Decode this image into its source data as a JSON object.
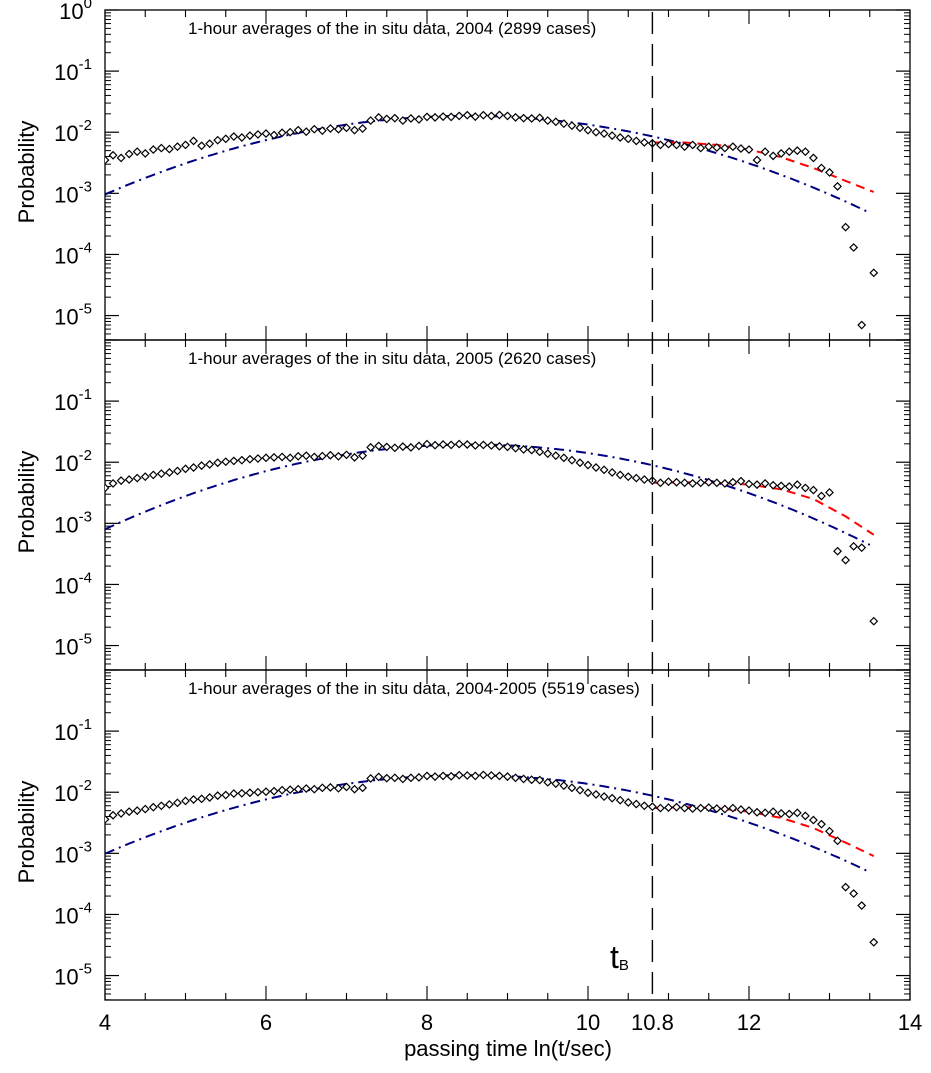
{
  "chart_data": {
    "type": "scatter",
    "xlabel": "passing time ln(t/sec)",
    "ylabel": "Probability",
    "xlim": [
      4,
      14
    ],
    "x_tick_labels": [
      "4",
      "6",
      "8",
      "10",
      "10.8",
      "12",
      "14"
    ],
    "x_ticks": [
      4,
      6,
      8,
      10,
      10.8,
      12,
      14
    ],
    "y_scale": "log",
    "vline": {
      "x": 10.8,
      "style": "dashed",
      "label_main": "t",
      "label_sub": "B"
    },
    "colors": {
      "fit_lognormal": "#000080",
      "fit_tail": "#ff0000",
      "data": "#000000"
    },
    "panels": [
      {
        "title": "1-hour averages of the in situ data, 2004 (2899 cases)",
        "ylim_exp": [
          -5.4,
          0
        ],
        "y_tick_labels": [
          {
            "base": "10",
            "exp": "0"
          },
          {
            "base": "10",
            "exp": "-1"
          },
          {
            "base": "10",
            "exp": "-2"
          },
          {
            "base": "10",
            "exp": "-3"
          },
          {
            "base": "10",
            "exp": "-4"
          },
          {
            "base": "10",
            "exp": "-5"
          }
        ],
        "fit_lognormal": {
          "mu": 8.5,
          "sigma": 1.85,
          "peak": 0.0185
        },
        "fit_tail": {
          "x": [
            10.8,
            11.2,
            11.6,
            12.0,
            12.4,
            12.8,
            13.2,
            13.55
          ],
          "y": [
            0.0068,
            0.0068,
            0.0062,
            0.0052,
            0.0039,
            0.0026,
            0.0016,
            0.00105
          ]
        },
        "points": {
          "x": [
            4.0,
            4.1,
            4.2,
            4.3,
            4.4,
            4.5,
            4.6,
            4.7,
            4.8,
            4.9,
            5.0,
            5.1,
            5.2,
            5.3,
            5.4,
            5.5,
            5.6,
            5.7,
            5.8,
            5.9,
            6.0,
            6.1,
            6.2,
            6.3,
            6.4,
            6.5,
            6.6,
            6.7,
            6.8,
            6.9,
            7.0,
            7.1,
            7.2,
            7.3,
            7.4,
            7.5,
            7.6,
            7.7,
            7.8,
            7.9,
            8.0,
            8.1,
            8.2,
            8.3,
            8.4,
            8.5,
            8.6,
            8.7,
            8.8,
            8.9,
            9.0,
            9.1,
            9.2,
            9.3,
            9.4,
            9.5,
            9.6,
            9.7,
            9.8,
            9.9,
            10.0,
            10.1,
            10.2,
            10.3,
            10.4,
            10.5,
            10.6,
            10.7,
            10.8,
            10.9,
            11.0,
            11.1,
            11.2,
            11.3,
            11.4,
            11.5,
            11.6,
            11.7,
            11.8,
            11.9,
            12.0,
            12.1,
            12.2,
            12.3,
            12.4,
            12.5,
            12.6,
            12.7,
            12.8,
            12.9,
            13.0,
            13.1,
            13.2,
            13.3,
            13.4,
            13.55
          ],
          "y": [
            0.0035,
            0.0042,
            0.0038,
            0.0044,
            0.0048,
            0.0045,
            0.0052,
            0.0055,
            0.0053,
            0.0058,
            0.0062,
            0.0072,
            0.006,
            0.0065,
            0.0074,
            0.0078,
            0.0085,
            0.0082,
            0.0088,
            0.0092,
            0.0095,
            0.009,
            0.0098,
            0.01,
            0.0108,
            0.0102,
            0.0112,
            0.0106,
            0.0115,
            0.0112,
            0.0118,
            0.0108,
            0.0115,
            0.0155,
            0.0175,
            0.0165,
            0.017,
            0.0155,
            0.0168,
            0.0162,
            0.0178,
            0.0175,
            0.018,
            0.0178,
            0.0185,
            0.019,
            0.018,
            0.019,
            0.0185,
            0.0192,
            0.0185,
            0.0175,
            0.017,
            0.0168,
            0.0172,
            0.0155,
            0.0148,
            0.0138,
            0.0128,
            0.0118,
            0.0108,
            0.01,
            0.0095,
            0.0088,
            0.0082,
            0.0078,
            0.0072,
            0.0068,
            0.0066,
            0.0062,
            0.0064,
            0.0062,
            0.0058,
            0.0062,
            0.0055,
            0.0058,
            0.0056,
            0.0055,
            0.0058,
            0.0054,
            0.0052,
            0.0035,
            0.0048,
            0.0041,
            0.0045,
            0.0048,
            0.005,
            0.0048,
            0.0038,
            0.0026,
            0.0022,
            0.0013,
            0.00028,
            0.00013,
            7e-06,
            5e-05
          ]
        }
      },
      {
        "title": "1-hour averages of the in situ data, 2005 (2620 cases)",
        "ylim_exp": [
          -5.4,
          0
        ],
        "y_tick_labels": [
          {
            "base": "10",
            "exp": "-1"
          },
          {
            "base": "10",
            "exp": "-2"
          },
          {
            "base": "10",
            "exp": "-3"
          },
          {
            "base": "10",
            "exp": "-4"
          },
          {
            "base": "10",
            "exp": "-5"
          }
        ],
        "fit_lognormal": {
          "mu": 8.55,
          "sigma": 1.8,
          "peak": 0.0195
        },
        "fit_tail": {
          "x": [
            10.8,
            11.2,
            11.6,
            12.0,
            12.4,
            12.8,
            13.2,
            13.55
          ],
          "y": [
            0.0046,
            0.0047,
            0.0046,
            0.0043,
            0.0036,
            0.0025,
            0.0013,
            0.00065
          ]
        },
        "points": {
          "x": [
            4.0,
            4.1,
            4.2,
            4.3,
            4.4,
            4.5,
            4.6,
            4.7,
            4.8,
            4.9,
            5.0,
            5.1,
            5.2,
            5.3,
            5.4,
            5.5,
            5.6,
            5.7,
            5.8,
            5.9,
            6.0,
            6.1,
            6.2,
            6.3,
            6.4,
            6.5,
            6.6,
            6.7,
            6.8,
            6.9,
            7.0,
            7.1,
            7.2,
            7.3,
            7.4,
            7.5,
            7.6,
            7.7,
            7.8,
            7.9,
            8.0,
            8.1,
            8.2,
            8.3,
            8.4,
            8.5,
            8.6,
            8.7,
            8.8,
            8.9,
            9.0,
            9.1,
            9.2,
            9.3,
            9.4,
            9.5,
            9.6,
            9.7,
            9.8,
            9.9,
            10.0,
            10.1,
            10.2,
            10.3,
            10.4,
            10.5,
            10.6,
            10.7,
            10.8,
            10.9,
            11.0,
            11.1,
            11.2,
            11.3,
            11.4,
            11.5,
            11.6,
            11.7,
            11.8,
            11.9,
            12.0,
            12.1,
            12.2,
            12.3,
            12.4,
            12.5,
            12.6,
            12.7,
            12.8,
            12.9,
            13.0,
            13.1,
            13.2,
            13.3,
            13.4,
            13.55
          ],
          "y": [
            0.0038,
            0.0045,
            0.005,
            0.0052,
            0.0055,
            0.0058,
            0.0062,
            0.0065,
            0.0068,
            0.0072,
            0.0078,
            0.0082,
            0.0088,
            0.0092,
            0.0098,
            0.0102,
            0.0105,
            0.0108,
            0.0112,
            0.0115,
            0.0118,
            0.012,
            0.0122,
            0.0118,
            0.0125,
            0.0128,
            0.0122,
            0.0126,
            0.013,
            0.0125,
            0.0132,
            0.012,
            0.0128,
            0.0175,
            0.0185,
            0.0178,
            0.0172,
            0.018,
            0.0175,
            0.0185,
            0.0198,
            0.019,
            0.0195,
            0.0192,
            0.0198,
            0.0195,
            0.0188,
            0.0192,
            0.0188,
            0.0182,
            0.0178,
            0.017,
            0.0162,
            0.0158,
            0.0148,
            0.0138,
            0.0128,
            0.0118,
            0.0108,
            0.0098,
            0.009,
            0.0082,
            0.0075,
            0.0068,
            0.0062,
            0.0058,
            0.0055,
            0.0052,
            0.005,
            0.0046,
            0.0048,
            0.0047,
            0.0046,
            0.0045,
            0.0046,
            0.0047,
            0.0046,
            0.0045,
            0.0047,
            0.0049,
            0.0044,
            0.0043,
            0.0045,
            0.0042,
            0.0041,
            0.004,
            0.0043,
            0.0038,
            0.0035,
            0.0028,
            0.0032,
            0.00035,
            0.00025,
            0.00042,
            0.0004,
            2.5e-05
          ]
        }
      },
      {
        "title": "1-hour averages of the in situ data, 2004-2005 (5519 cases)",
        "ylim_exp": [
          -5.4,
          0
        ],
        "y_tick_labels": [
          {
            "base": "10",
            "exp": "-1"
          },
          {
            "base": "10",
            "exp": "-2"
          },
          {
            "base": "10",
            "exp": "-3"
          },
          {
            "base": "10",
            "exp": "-4"
          },
          {
            "base": "10",
            "exp": "-5"
          }
        ],
        "fit_lognormal": {
          "mu": 8.5,
          "sigma": 1.85,
          "peak": 0.019
        },
        "fit_tail": {
          "x": [
            10.8,
            11.2,
            11.6,
            12.0,
            12.4,
            12.8,
            13.2,
            13.55
          ],
          "y": [
            0.0055,
            0.0057,
            0.0055,
            0.0048,
            0.0038,
            0.0026,
            0.0015,
            0.0009
          ]
        },
        "points": {
          "x": [
            4.0,
            4.1,
            4.2,
            4.3,
            4.4,
            4.5,
            4.6,
            4.7,
            4.8,
            4.9,
            5.0,
            5.1,
            5.2,
            5.3,
            5.4,
            5.5,
            5.6,
            5.7,
            5.8,
            5.9,
            6.0,
            6.1,
            6.2,
            6.3,
            6.4,
            6.5,
            6.6,
            6.7,
            6.8,
            6.9,
            7.0,
            7.1,
            7.2,
            7.3,
            7.4,
            7.5,
            7.6,
            7.7,
            7.8,
            7.9,
            8.0,
            8.1,
            8.2,
            8.3,
            8.4,
            8.5,
            8.6,
            8.7,
            8.8,
            8.9,
            9.0,
            9.1,
            9.2,
            9.3,
            9.4,
            9.5,
            9.6,
            9.7,
            9.8,
            9.9,
            10.0,
            10.1,
            10.2,
            10.3,
            10.4,
            10.5,
            10.6,
            10.7,
            10.8,
            10.9,
            11.0,
            11.1,
            11.2,
            11.3,
            11.4,
            11.5,
            11.6,
            11.7,
            11.8,
            11.9,
            12.0,
            12.1,
            12.2,
            12.3,
            12.4,
            12.5,
            12.6,
            12.7,
            12.8,
            12.9,
            13.0,
            13.1,
            13.2,
            13.3,
            13.4,
            13.55
          ],
          "y": [
            0.0036,
            0.0042,
            0.0045,
            0.0048,
            0.005,
            0.0053,
            0.0057,
            0.006,
            0.0063,
            0.0067,
            0.0072,
            0.0076,
            0.0078,
            0.0082,
            0.0088,
            0.009,
            0.0095,
            0.0096,
            0.0098,
            0.01,
            0.0102,
            0.0104,
            0.0108,
            0.011,
            0.0112,
            0.0115,
            0.0112,
            0.0118,
            0.012,
            0.0116,
            0.0122,
            0.0112,
            0.0118,
            0.0168,
            0.0178,
            0.017,
            0.0172,
            0.0165,
            0.0172,
            0.0175,
            0.0185,
            0.018,
            0.0185,
            0.0182,
            0.019,
            0.0188,
            0.0185,
            0.0192,
            0.0188,
            0.0185,
            0.018,
            0.0172,
            0.0165,
            0.016,
            0.0158,
            0.0145,
            0.0138,
            0.0128,
            0.0118,
            0.0108,
            0.0098,
            0.0092,
            0.0085,
            0.008,
            0.0074,
            0.0068,
            0.0064,
            0.006,
            0.0058,
            0.0055,
            0.0056,
            0.0057,
            0.0055,
            0.0054,
            0.0055,
            0.0056,
            0.0054,
            0.0053,
            0.0055,
            0.0052,
            0.005,
            0.0047,
            0.0046,
            0.0048,
            0.0045,
            0.0044,
            0.0046,
            0.0041,
            0.0035,
            0.003,
            0.0023,
            0.0016,
            0.00028,
            0.00022,
            0.00014,
            3.5e-05
          ]
        }
      }
    ]
  }
}
